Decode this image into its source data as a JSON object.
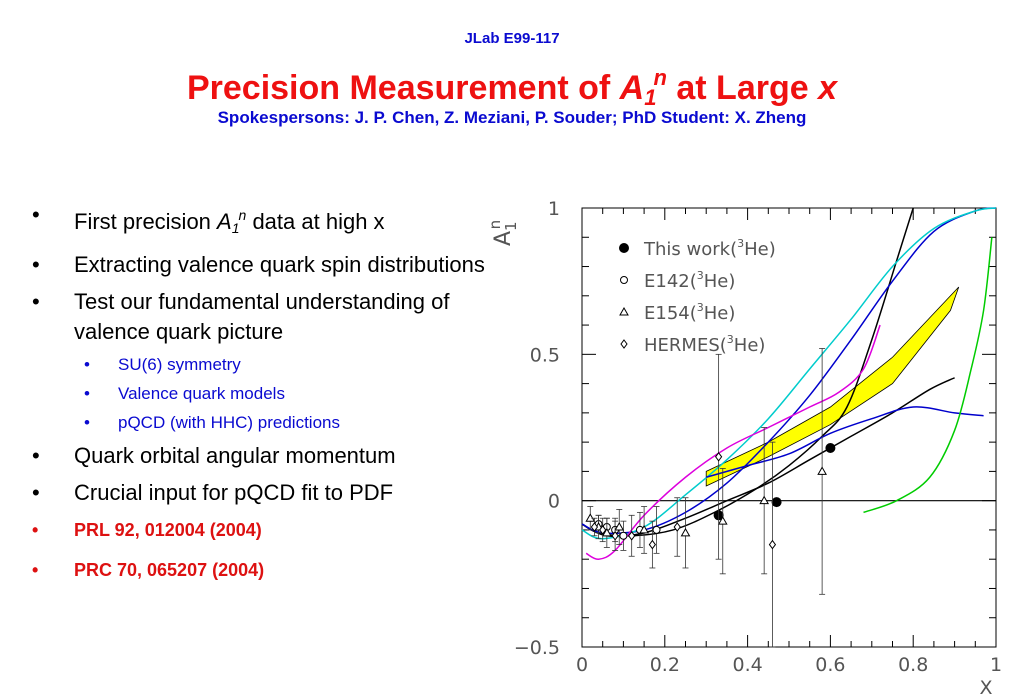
{
  "header": {
    "experiment": "JLab E99-117",
    "title_prefix": "Precision Measurement of ",
    "title_sym": "A",
    "title_sub": "1",
    "title_sup": "n",
    "title_mid": " at Large ",
    "title_var": "x",
    "spokespersons": "Spokespersons: J. P. Chen, Z. Meziani, P. Souder; PhD Student: X. Zheng"
  },
  "bullets": {
    "b1_pre": "First precision ",
    "b1_sym": "A",
    "b1_sub": "1",
    "b1_sup": "n",
    "b1_post": " data at high x",
    "b2": "Extracting valence quark spin distributions",
    "b3": "Test our fundamental understanding of valence quark picture",
    "sub1": "SU(6) symmetry",
    "sub2": "Valence quark models",
    "sub3": "pQCD (with HHC) predictions",
    "b4": "Quark orbital angular momentum",
    "b5": "Crucial input for pQCD fit to PDF",
    "ref1": "PRL 92, 012004 (2004)",
    "ref2": "PRC 70, 065207 (2004)"
  },
  "chart_data": {
    "type": "scatter",
    "title": "",
    "xlabel": "X",
    "ylabel_sym": "A",
    "ylabel_sub": "1",
    "ylabel_sup": "n",
    "xlim": [
      0,
      1
    ],
    "ylim": [
      -0.5,
      1
    ],
    "xticks": [
      "0",
      "0.2",
      "0.4",
      "0.6",
      "0.8",
      "1"
    ],
    "yticks": [
      "1",
      "0.5",
      "0",
      "-0.5"
    ],
    "ytick_values": [
      1,
      0.5,
      0,
      -0.5
    ],
    "legend": {
      "placement": "top-left",
      "items": [
        {
          "label_pre": "This work(",
          "label_sup": "3",
          "label_post": "He)",
          "marker": "filled-circle"
        },
        {
          "label_pre": "E142(",
          "label_sup": "3",
          "label_post": "He)",
          "marker": "open-circle"
        },
        {
          "label_pre": "E154(",
          "label_sup": "3",
          "label_post": "He)",
          "marker": "open-triangle"
        },
        {
          "label_pre": "HERMES(",
          "label_sup": "3",
          "label_post": "He)",
          "marker": "open-diamond"
        }
      ]
    },
    "series": [
      {
        "name": "This work(3He)",
        "marker": "filled-circle",
        "points": [
          {
            "x": 0.33,
            "y": -0.05,
            "err": 0.0
          },
          {
            "x": 0.47,
            "y": -0.005,
            "err": 0.0
          },
          {
            "x": 0.6,
            "y": 0.18,
            "err": 0.0
          }
        ]
      },
      {
        "name": "E142(3He)",
        "marker": "open-circle",
        "points": [
          {
            "x": 0.04,
            "y": -0.08,
            "err": 0.03
          },
          {
            "x": 0.06,
            "y": -0.09,
            "err": 0.03
          },
          {
            "x": 0.08,
            "y": -0.1,
            "err": 0.04
          },
          {
            "x": 0.1,
            "y": -0.12,
            "err": 0.05
          },
          {
            "x": 0.14,
            "y": -0.1,
            "err": 0.06
          },
          {
            "x": 0.18,
            "y": -0.1,
            "err": 0.08
          }
        ]
      },
      {
        "name": "E154(3He)",
        "marker": "open-triangle",
        "points": [
          {
            "x": 0.02,
            "y": -0.06,
            "err": 0.04
          },
          {
            "x": 0.04,
            "y": -0.09,
            "err": 0.04
          },
          {
            "x": 0.06,
            "y": -0.11,
            "err": 0.05
          },
          {
            "x": 0.09,
            "y": -0.09,
            "err": 0.06
          },
          {
            "x": 0.15,
            "y": -0.1,
            "err": 0.08
          },
          {
            "x": 0.25,
            "y": -0.11,
            "err": 0.12
          },
          {
            "x": 0.34,
            "y": -0.07,
            "err": 0.18
          },
          {
            "x": 0.44,
            "y": 0.0,
            "err": 0.25
          },
          {
            "x": 0.58,
            "y": 0.1,
            "err": 0.42
          }
        ]
      },
      {
        "name": "HERMES(3He)",
        "marker": "open-diamond",
        "points": [
          {
            "x": 0.03,
            "y": -0.09,
            "err": 0.03
          },
          {
            "x": 0.05,
            "y": -0.1,
            "err": 0.04
          },
          {
            "x": 0.08,
            "y": -0.12,
            "err": 0.05
          },
          {
            "x": 0.12,
            "y": -0.12,
            "err": 0.07
          },
          {
            "x": 0.17,
            "y": -0.15,
            "err": 0.08
          },
          {
            "x": 0.23,
            "y": -0.09,
            "err": 0.1
          },
          {
            "x": 0.33,
            "y": 0.15,
            "err": 0.35
          },
          {
            "x": 0.46,
            "y": -0.15,
            "err": 0.35
          }
        ]
      }
    ],
    "band": {
      "color": "#ffff00",
      "lower": [
        [
          0.3,
          0.05
        ],
        [
          0.45,
          0.15
        ],
        [
          0.6,
          0.26
        ],
        [
          0.75,
          0.4
        ],
        [
          0.89,
          0.65
        ]
      ],
      "upper": [
        [
          0.3,
          0.1
        ],
        [
          0.45,
          0.2
        ],
        [
          0.6,
          0.32
        ],
        [
          0.75,
          0.49
        ],
        [
          0.91,
          0.73
        ]
      ]
    },
    "curves": [
      {
        "color": "#000000",
        "points": [
          [
            0,
            -0.08
          ],
          [
            0.04,
            -0.11
          ],
          [
            0.12,
            -0.12
          ],
          [
            0.22,
            -0.1
          ],
          [
            0.32,
            -0.04
          ],
          [
            0.42,
            0.04
          ],
          [
            0.5,
            0.12
          ],
          [
            0.58,
            0.22
          ],
          [
            0.64,
            0.32
          ],
          [
            0.7,
            0.55
          ],
          [
            0.76,
            0.82
          ],
          [
            0.8,
            1.0
          ]
        ]
      },
      {
        "color": "#000000",
        "points": [
          [
            0,
            -0.08
          ],
          [
            0.06,
            -0.12
          ],
          [
            0.15,
            -0.11
          ],
          [
            0.25,
            -0.06
          ],
          [
            0.35,
            0.0
          ],
          [
            0.45,
            0.06
          ],
          [
            0.55,
            0.14
          ],
          [
            0.65,
            0.22
          ],
          [
            0.75,
            0.3
          ],
          [
            0.84,
            0.38
          ],
          [
            0.9,
            0.42
          ]
        ]
      },
      {
        "color": "#0000cc",
        "points": [
          [
            0,
            -0.08
          ],
          [
            0.05,
            -0.11
          ],
          [
            0.15,
            -0.1
          ],
          [
            0.25,
            -0.04
          ],
          [
            0.35,
            0.06
          ],
          [
            0.45,
            0.2
          ],
          [
            0.55,
            0.36
          ],
          [
            0.65,
            0.55
          ],
          [
            0.75,
            0.75
          ],
          [
            0.85,
            0.92
          ],
          [
            0.95,
            0.99
          ],
          [
            1.0,
            1.0
          ]
        ]
      },
      {
        "color": "#00cccc",
        "points": [
          [
            0,
            -0.1
          ],
          [
            0.05,
            -0.13
          ],
          [
            0.15,
            -0.09
          ],
          [
            0.25,
            0.02
          ],
          [
            0.35,
            0.14
          ],
          [
            0.45,
            0.28
          ],
          [
            0.55,
            0.45
          ],
          [
            0.65,
            0.62
          ],
          [
            0.75,
            0.8
          ],
          [
            0.85,
            0.93
          ],
          [
            0.95,
            0.99
          ],
          [
            1.0,
            1.0
          ]
        ]
      },
      {
        "color": "#0000cc",
        "points": [
          [
            0.3,
            0.08
          ],
          [
            0.4,
            0.12
          ],
          [
            0.5,
            0.16
          ],
          [
            0.6,
            0.23
          ],
          [
            0.7,
            0.28
          ],
          [
            0.8,
            0.32
          ],
          [
            0.9,
            0.3
          ],
          [
            0.97,
            0.29
          ]
        ]
      },
      {
        "color": "#dd00dd",
        "points": [
          [
            0.01,
            -0.18
          ],
          [
            0.04,
            -0.2
          ],
          [
            0.08,
            -0.17
          ],
          [
            0.15,
            -0.05
          ],
          [
            0.25,
            0.08
          ],
          [
            0.35,
            0.18
          ],
          [
            0.45,
            0.25
          ],
          [
            0.55,
            0.32
          ],
          [
            0.62,
            0.37
          ],
          [
            0.68,
            0.45
          ],
          [
            0.72,
            0.6
          ]
        ]
      },
      {
        "color": "#00cc00",
        "points": [
          [
            0.68,
            -0.04
          ],
          [
            0.76,
            0.0
          ],
          [
            0.84,
            0.08
          ],
          [
            0.9,
            0.24
          ],
          [
            0.94,
            0.45
          ],
          [
            0.97,
            0.65
          ],
          [
            0.99,
            0.9
          ]
        ]
      }
    ]
  },
  "colors": {
    "title_red": "#ee1111",
    "header_blue": "#0a0ad0",
    "band_yellow": "#ffff00"
  }
}
